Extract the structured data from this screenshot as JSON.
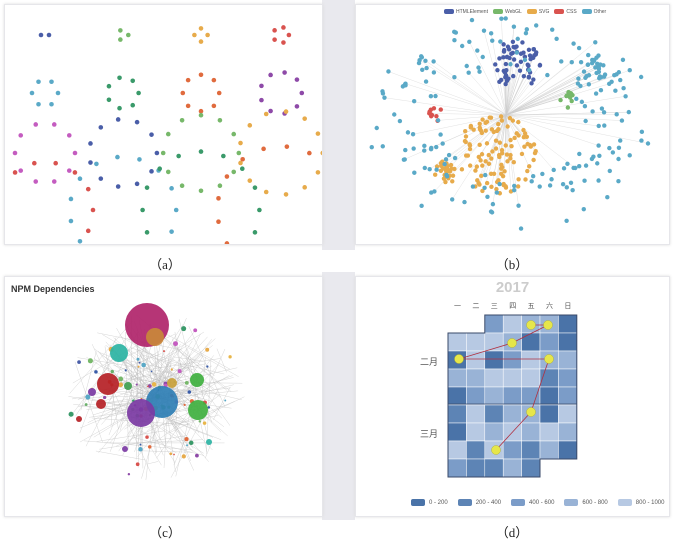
{
  "captions": {
    "a": "（a）",
    "b": "（b）",
    "c": "（c）",
    "d": "（d）"
  },
  "panel_b": {
    "legend": [
      {
        "label": "HTMLElement",
        "color": "#4a5ea8"
      },
      {
        "label": "WebGL",
        "color": "#77b86a"
      },
      {
        "label": "SVG",
        "color": "#e7ab4b"
      },
      {
        "label": "CSS",
        "color": "#d9534f"
      },
      {
        "label": "Other",
        "color": "#5aa9c7"
      }
    ]
  },
  "panel_c": {
    "title": "NPM Dependencies"
  },
  "panel_d": {
    "year": "2017",
    "weekdays": [
      "一",
      "二",
      "三",
      "四",
      "五",
      "六",
      "日"
    ],
    "months": [
      "二月",
      "三月"
    ],
    "legend": [
      {
        "label": "0 - 200",
        "color": "#4a73a8"
      },
      {
        "label": "200 - 400",
        "color": "#5d84b5"
      },
      {
        "label": "400 - 600",
        "color": "#7b9cc8"
      },
      {
        "label": "600 - 800",
        "color": "#99b3d6"
      },
      {
        "label": "800 - 1000",
        "color": "#b7c9e3"
      }
    ]
  },
  "palette": [
    "#4a5ea8",
    "#77b86a",
    "#e7ab4b",
    "#d9534f",
    "#5aa9c7",
    "#3a9a6a",
    "#e06b3e",
    "#8e4aa8",
    "#c45cc0",
    "#3a5ca8",
    "#6ab06a",
    "#e8b64a"
  ]
}
